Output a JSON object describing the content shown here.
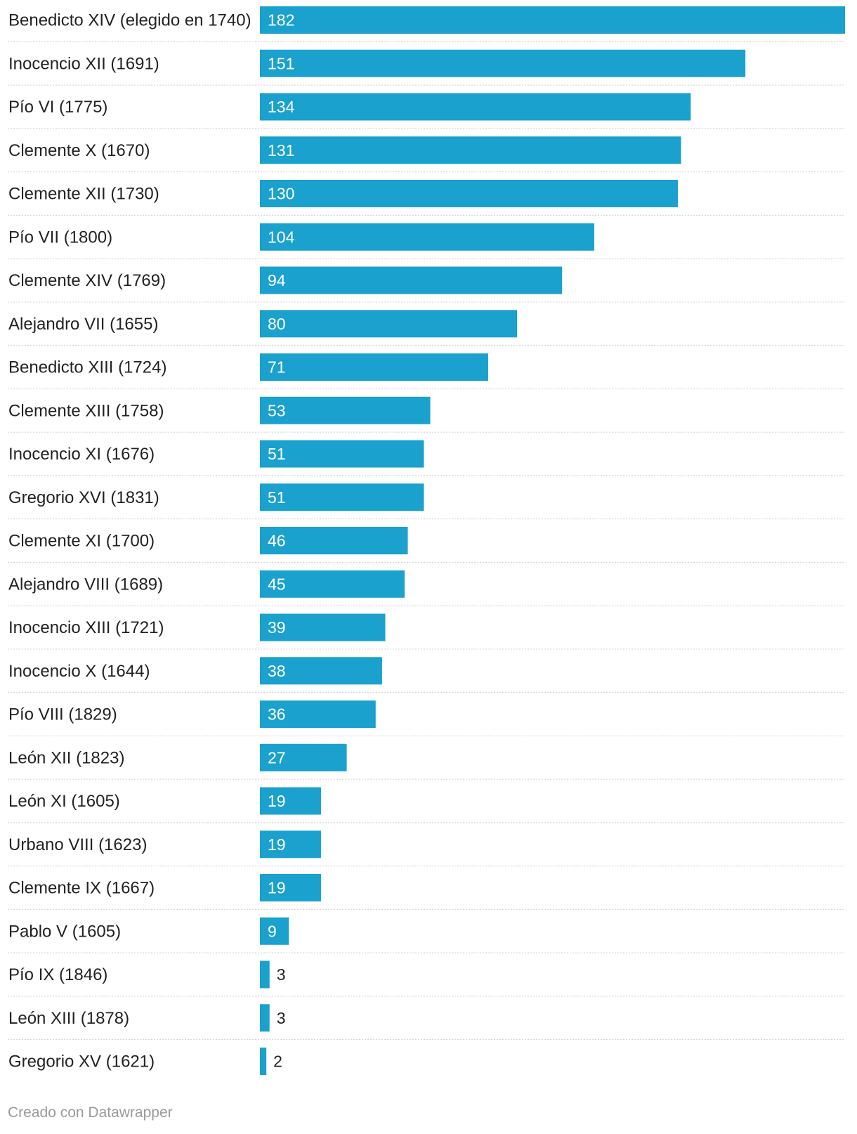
{
  "chart_data": {
    "type": "bar",
    "orientation": "horizontal",
    "title": "",
    "xlabel": "",
    "ylabel": "",
    "xlim": [
      0,
      182
    ],
    "grid": false,
    "bar_color": "#1aa1cd",
    "separator_color": "#cfcfcf",
    "categories": [
      "Benedicto XIV (elegido en 1740)",
      "Inocencio XII (1691)",
      "Pío VI (1775)",
      "Clemente X (1670)",
      "Clemente XII (1730)",
      "Pío VII (1800)",
      "Clemente XIV (1769)",
      "Alejandro VII (1655)",
      "Benedicto XIII (1724)",
      "Clemente XIII (1758)",
      "Inocencio XI (1676)",
      "Gregorio XVI (1831)",
      "Clemente XI (1700)",
      "Alejandro VIII (1689)",
      "Inocencio XIII (1721)",
      "Inocencio X (1644)",
      "Pío VIII (1829)",
      "León XII (1823)",
      "León XI (1605)",
      "Urbano VIII (1623)",
      "Clemente IX (1667)",
      "Pablo V (1605)",
      "Pío IX (1846)",
      "León XIII (1878)",
      "Gregorio XV (1621)"
    ],
    "values": [
      182,
      151,
      134,
      131,
      130,
      104,
      94,
      80,
      71,
      53,
      51,
      51,
      46,
      45,
      39,
      38,
      36,
      27,
      19,
      19,
      19,
      9,
      3,
      3,
      2
    ]
  },
  "footer": {
    "credit": "Creado con Datawrapper"
  }
}
